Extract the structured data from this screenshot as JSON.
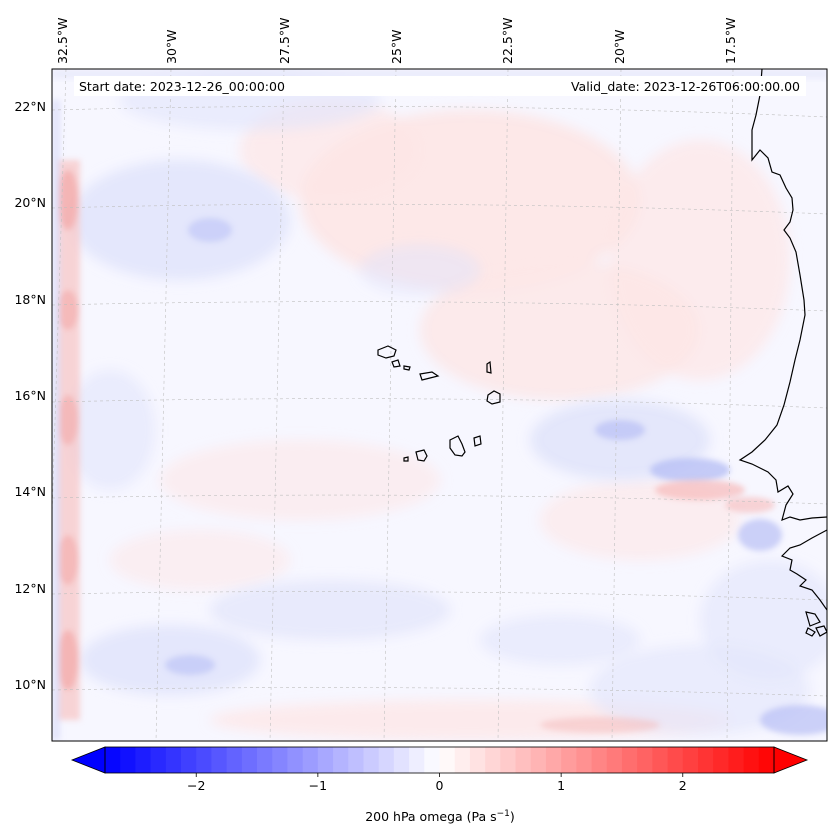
{
  "header": {
    "start_date": "Start date: 2023-12-26_00:00:00",
    "valid_date": "Valid_date: 2023-12-26T06:00:00.00"
  },
  "map": {
    "longitude_labels": [
      "32.5°W",
      "30°W",
      "27.5°W",
      "25°W",
      "22.5°W",
      "20°W",
      "17.5°W"
    ],
    "latitude_labels": [
      "22°N",
      "20°N",
      "18°N",
      "16°N",
      "14°N",
      "12°N",
      "10°N"
    ],
    "field": "200 hPa omega",
    "colormap": "bwr",
    "gridlines": true
  },
  "colorbar": {
    "label": "200 hPa omega (Pa s",
    "unit_exponent": "−1",
    "label_close": ")",
    "ticks": [
      "−2",
      "−1",
      "0",
      "1",
      "2"
    ],
    "range": [
      -2.75,
      2.75
    ],
    "extend": "both",
    "colors": {
      "negative": "#0000ff",
      "zero": "#ffffff",
      "positive": "#ff0000"
    }
  }
}
